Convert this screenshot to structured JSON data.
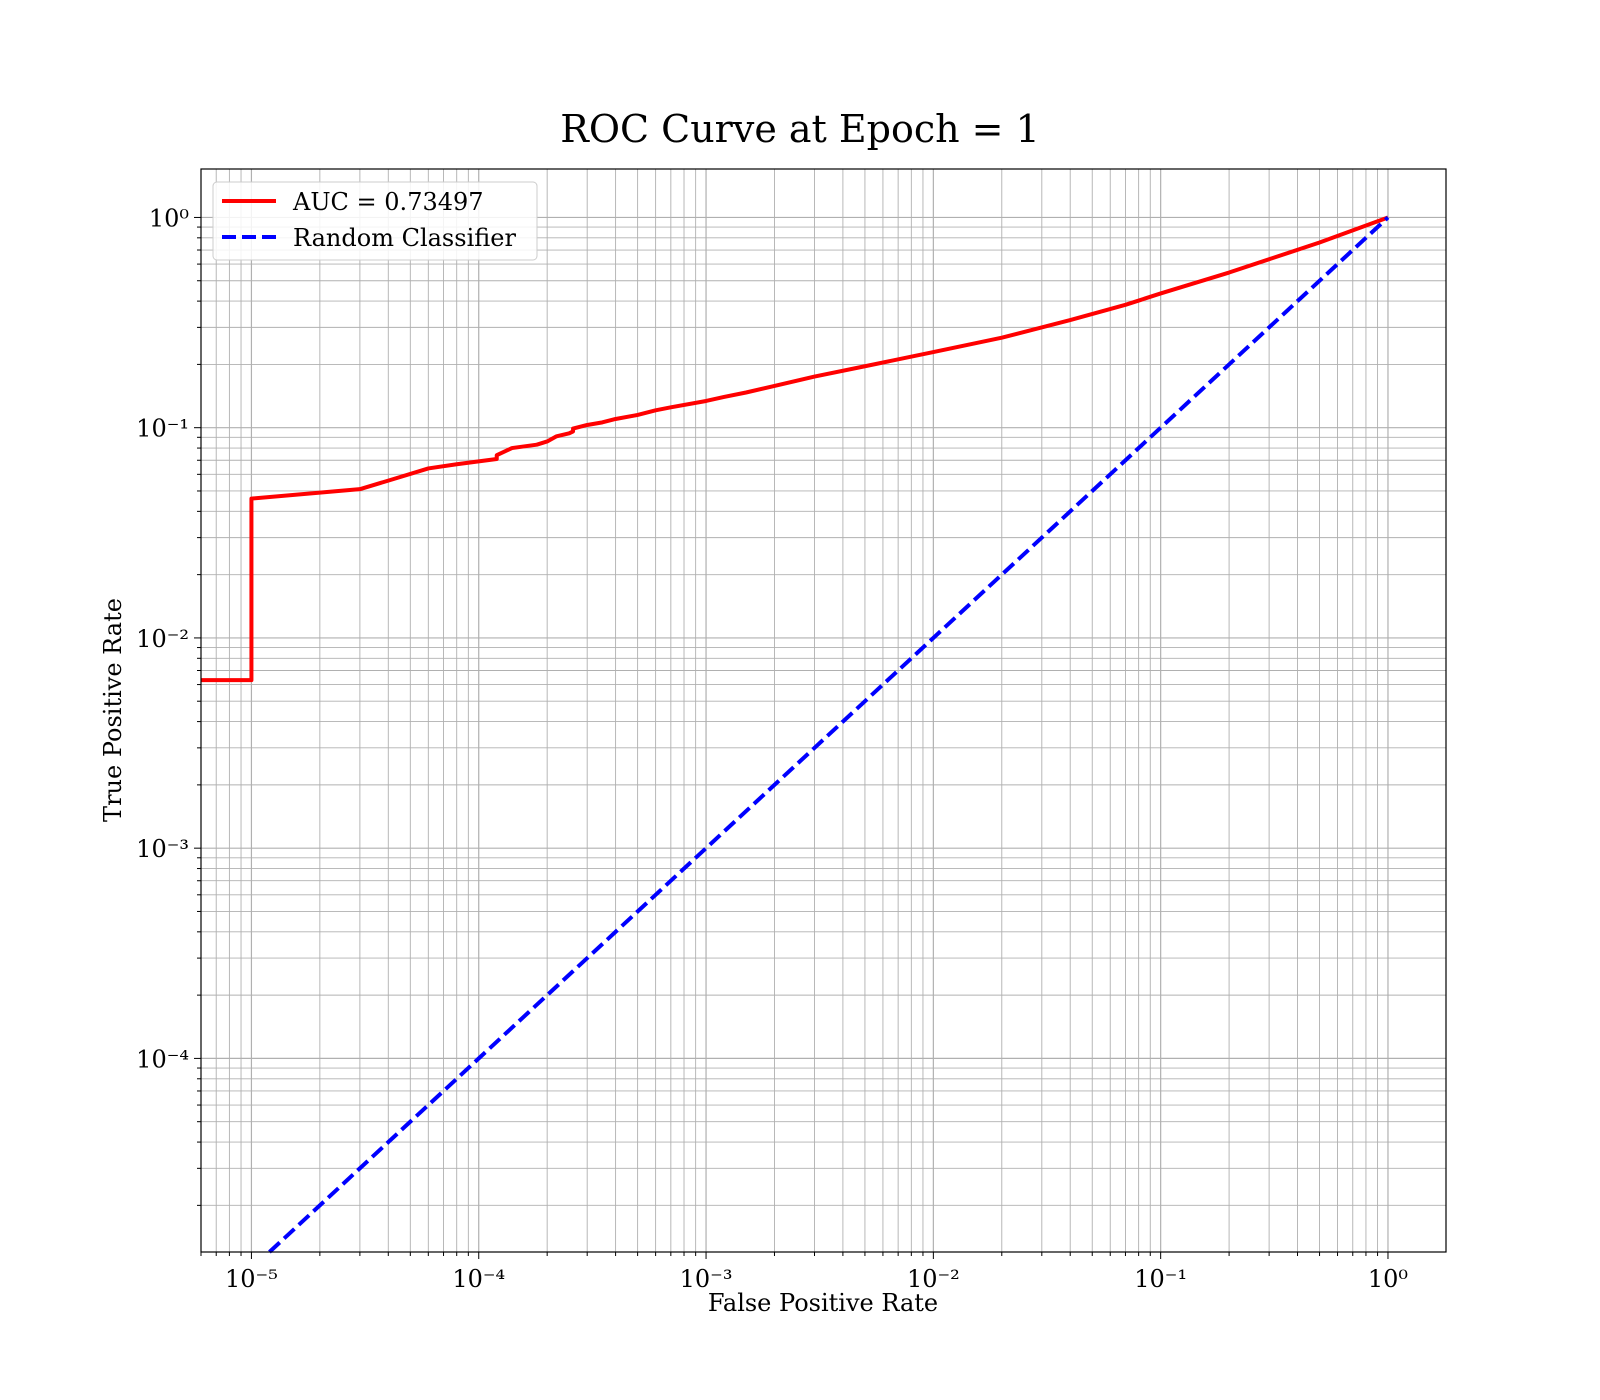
{
  "chart_data": {
    "type": "line",
    "title": "ROC Curve at Epoch = 1",
    "xlabel": "False Positive Rate",
    "ylabel": "True Positive Rate",
    "xscale": "log",
    "yscale": "log",
    "xlim": [
      6e-06,
      1.8
    ],
    "ylim": [
      1.2e-05,
      1.7
    ],
    "grid": "on (major and minor)",
    "legend_position": "top-left",
    "xticks": [
      {
        "value": 1e-05,
        "label": "10⁻⁵"
      },
      {
        "value": 0.0001,
        "label": "10⁻⁴"
      },
      {
        "value": 0.001,
        "label": "10⁻³"
      },
      {
        "value": 0.01,
        "label": "10⁻²"
      },
      {
        "value": 0.1,
        "label": "10⁻¹"
      },
      {
        "value": 1,
        "label": "10⁰"
      }
    ],
    "yticks": [
      {
        "value": 0.0001,
        "label": "10⁻⁴"
      },
      {
        "value": 0.001,
        "label": "10⁻³"
      },
      {
        "value": 0.01,
        "label": "10⁻²"
      },
      {
        "value": 0.1,
        "label": "10⁻¹"
      },
      {
        "value": 1,
        "label": "10⁰"
      }
    ],
    "series": [
      {
        "name": "AUC = 0.73497",
        "color": "#ff0000",
        "style": "solid",
        "x": [
          6e-06,
          1e-05,
          1e-05,
          3e-05,
          4e-05,
          6e-05,
          8e-05,
          0.00012,
          0.00012,
          0.00014,
          0.00018,
          0.0002,
          0.00022,
          0.00025,
          0.00026,
          0.00026,
          0.0003,
          0.00035,
          0.0004,
          0.0005,
          0.0006,
          0.0007,
          0.001,
          0.0012,
          0.0015,
          0.002,
          0.003,
          0.005,
          0.01,
          0.02,
          0.04,
          0.07,
          0.1,
          0.2,
          0.5,
          1.0
        ],
        "y": [
          0.0063,
          0.0063,
          0.046,
          0.051,
          0.056,
          0.064,
          0.067,
          0.071,
          0.074,
          0.08,
          0.083,
          0.086,
          0.091,
          0.094,
          0.096,
          0.099,
          0.103,
          0.106,
          0.11,
          0.115,
          0.121,
          0.125,
          0.134,
          0.14,
          0.147,
          0.158,
          0.175,
          0.196,
          0.229,
          0.268,
          0.325,
          0.384,
          0.435,
          0.547,
          0.76,
          1.0
        ]
      },
      {
        "name": "Random Classifier",
        "color": "#0000ff",
        "style": "dashed",
        "x": [
          1.2e-05,
          1.0
        ],
        "y": [
          1.2e-05,
          1.0
        ]
      }
    ]
  }
}
